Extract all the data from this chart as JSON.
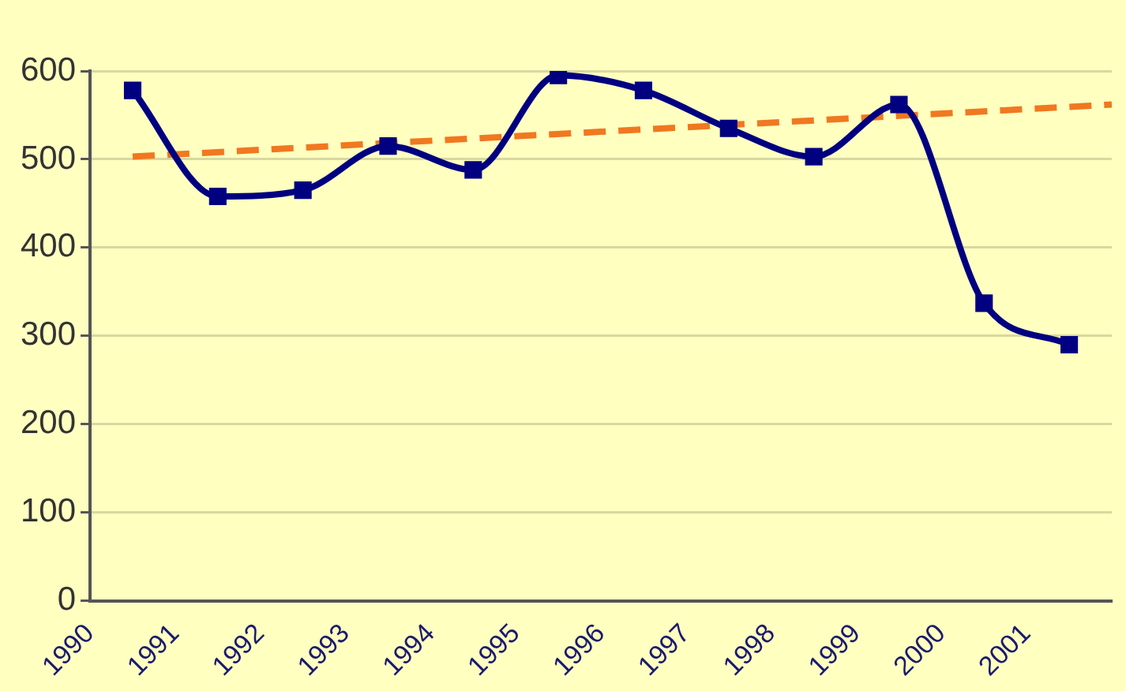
{
  "chart_data": {
    "type": "line",
    "xlim": [
      1990,
      2002
    ],
    "xticks": [
      1990,
      1991,
      1992,
      1993,
      1994,
      1995,
      1996,
      1997,
      1998,
      1999,
      2000,
      2001
    ],
    "ylim": [
      0,
      600
    ],
    "yticks": [
      0,
      100,
      200,
      300,
      400,
      500,
      600
    ],
    "grid": "y",
    "legend": false,
    "marker": "square",
    "series": [
      {
        "color": "#000080",
        "x": [
          1990.5,
          1991.5,
          1992.5,
          1993.5,
          1994.5,
          1995.5,
          1996.5,
          1997.5,
          1998.5,
          1999.5,
          2000.5,
          2001.5
        ],
        "values": [
          578,
          458,
          465,
          515,
          488,
          595,
          578,
          535,
          503,
          562,
          337,
          290
        ]
      },
      {
        "color": "#f07820",
        "line_style": "dashed",
        "marker": "none",
        "x": [
          1990.5,
          2002
        ],
        "values": [
          503,
          562
        ]
      }
    ]
  }
}
